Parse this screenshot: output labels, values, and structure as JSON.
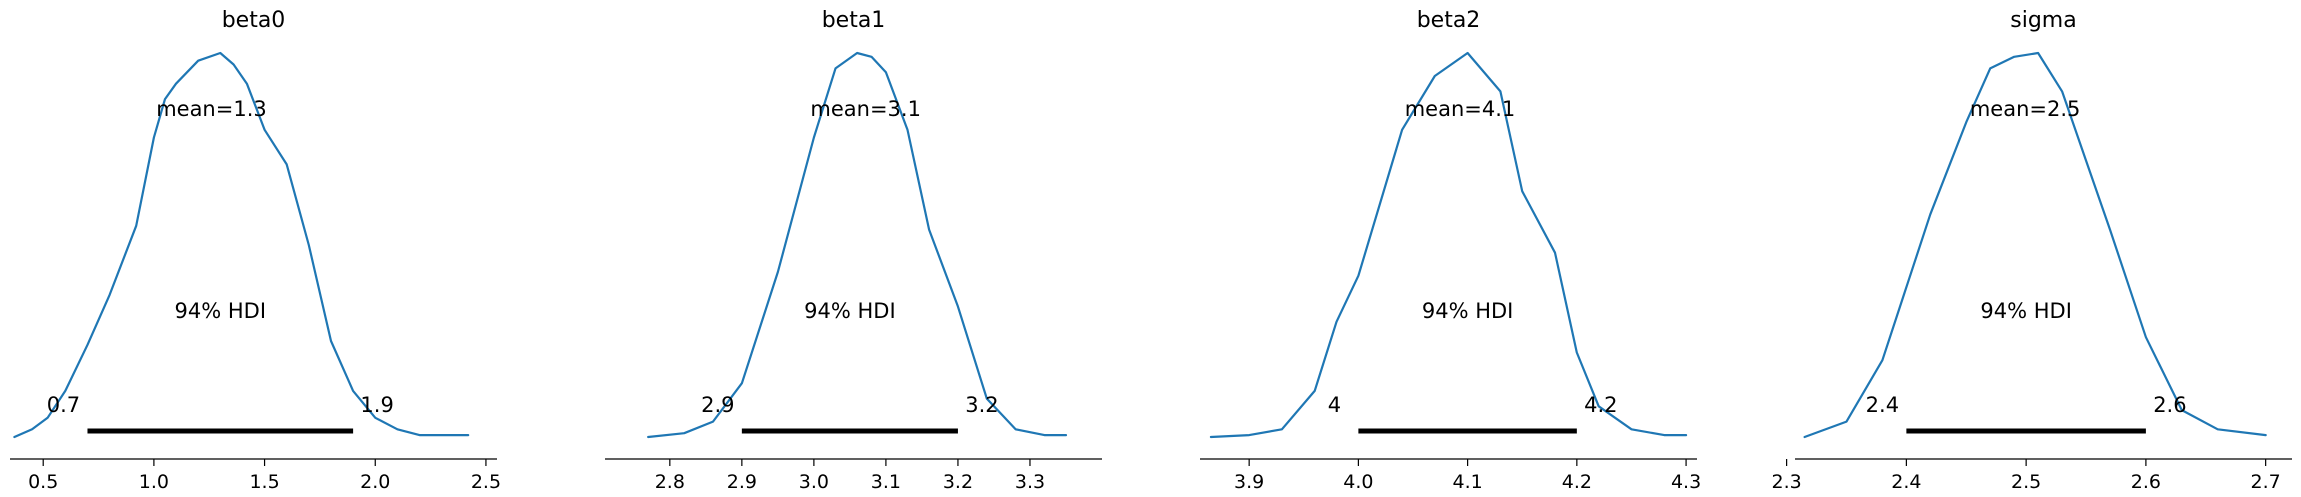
{
  "colors": {
    "kde": "#1f77b4",
    "hdi": "#000000"
  },
  "chart_data": [
    {
      "type": "line",
      "title": "beta0",
      "mean_label": "mean=1.3",
      "hdi_label": "94% HDI",
      "hdi": {
        "low": 0.7,
        "high": 1.9,
        "low_label": "0.7",
        "high_label": "1.9"
      },
      "xlim": [
        0.35,
        2.55
      ],
      "xticks": [
        0.5,
        1.0,
        1.5,
        2.0,
        2.5
      ],
      "xtick_labels": [
        "0.5",
        "1.0",
        "1.5",
        "2.0",
        "2.5"
      ],
      "ylim": [
        0,
        1
      ],
      "x": [
        0.37,
        0.45,
        0.52,
        0.6,
        0.7,
        0.8,
        0.92,
        1.0,
        1.05,
        1.1,
        1.2,
        1.3,
        1.36,
        1.42,
        1.5,
        1.6,
        1.7,
        1.8,
        1.9,
        2.0,
        2.1,
        2.2,
        2.3,
        2.42
      ],
      "y": [
        0.0,
        0.02,
        0.05,
        0.12,
        0.24,
        0.37,
        0.55,
        0.78,
        0.88,
        0.92,
        0.98,
        1.0,
        0.97,
        0.92,
        0.8,
        0.71,
        0.5,
        0.25,
        0.12,
        0.05,
        0.02,
        0.005,
        0.005,
        0.005
      ]
    },
    {
      "type": "line",
      "title": "beta1",
      "mean_label": "mean=3.1",
      "hdi_label": "94% HDI",
      "hdi": {
        "low": 2.9,
        "high": 3.2,
        "low_label": "2.9",
        "high_label": "3.2"
      },
      "xlim": [
        2.71,
        3.4
      ],
      "xticks": [
        2.8,
        2.9,
        3.0,
        3.1,
        3.2,
        3.3
      ],
      "xtick_labels": [
        "2.8",
        "2.9",
        "3.0",
        "3.1",
        "3.2",
        "3.3"
      ],
      "ylim": [
        0,
        1
      ],
      "x": [
        2.77,
        2.82,
        2.86,
        2.9,
        2.95,
        3.0,
        3.03,
        3.06,
        3.08,
        3.1,
        3.13,
        3.16,
        3.2,
        3.24,
        3.28,
        3.32,
        3.35
      ],
      "y": [
        0.0,
        0.01,
        0.04,
        0.14,
        0.43,
        0.78,
        0.96,
        1.0,
        0.99,
        0.95,
        0.8,
        0.54,
        0.34,
        0.1,
        0.02,
        0.005,
        0.005
      ]
    },
    {
      "type": "line",
      "title": "beta2",
      "mean_label": "mean=4.1",
      "hdi_label": "94% HDI",
      "hdi": {
        "low": 4.0,
        "high": 4.2,
        "low_label": "4",
        "high_label": "4.2"
      },
      "xlim": [
        3.855,
        4.31
      ],
      "xticks": [
        3.9,
        4.0,
        4.1,
        4.2,
        4.3
      ],
      "xtick_labels": [
        "3.9",
        "4.0",
        "4.1",
        "4.2",
        "4.3"
      ],
      "ylim": [
        0,
        1
      ],
      "x": [
        3.865,
        3.9,
        3.93,
        3.96,
        3.98,
        4.0,
        4.04,
        4.07,
        4.1,
        4.13,
        4.15,
        4.18,
        4.2,
        4.22,
        4.25,
        4.28,
        4.3
      ],
      "y": [
        0.0,
        0.005,
        0.02,
        0.12,
        0.3,
        0.42,
        0.8,
        0.94,
        1.0,
        0.9,
        0.64,
        0.48,
        0.22,
        0.08,
        0.02,
        0.005,
        0.005
      ]
    },
    {
      "type": "line",
      "title": "sigma",
      "mean_label": "mean=2.5",
      "hdi_label": "94% HDI",
      "hdi": {
        "low": 2.4,
        "high": 2.6,
        "low_label": "2.4",
        "high_label": "2.6"
      },
      "xlim": [
        2.307,
        2.722
      ],
      "xticks": [
        2.3,
        2.4,
        2.5,
        2.6,
        2.7
      ],
      "xtick_labels": [
        "2.3",
        "2.4",
        "2.5",
        "2.6",
        "2.7"
      ],
      "ylim": [
        0,
        1
      ],
      "x": [
        2.315,
        2.35,
        2.38,
        2.42,
        2.45,
        2.47,
        2.49,
        2.51,
        2.53,
        2.55,
        2.57,
        2.6,
        2.63,
        2.66,
        2.7
      ],
      "y": [
        0.0,
        0.04,
        0.2,
        0.58,
        0.82,
        0.96,
        0.99,
        1.0,
        0.9,
        0.72,
        0.54,
        0.26,
        0.07,
        0.02,
        0.005
      ]
    }
  ]
}
